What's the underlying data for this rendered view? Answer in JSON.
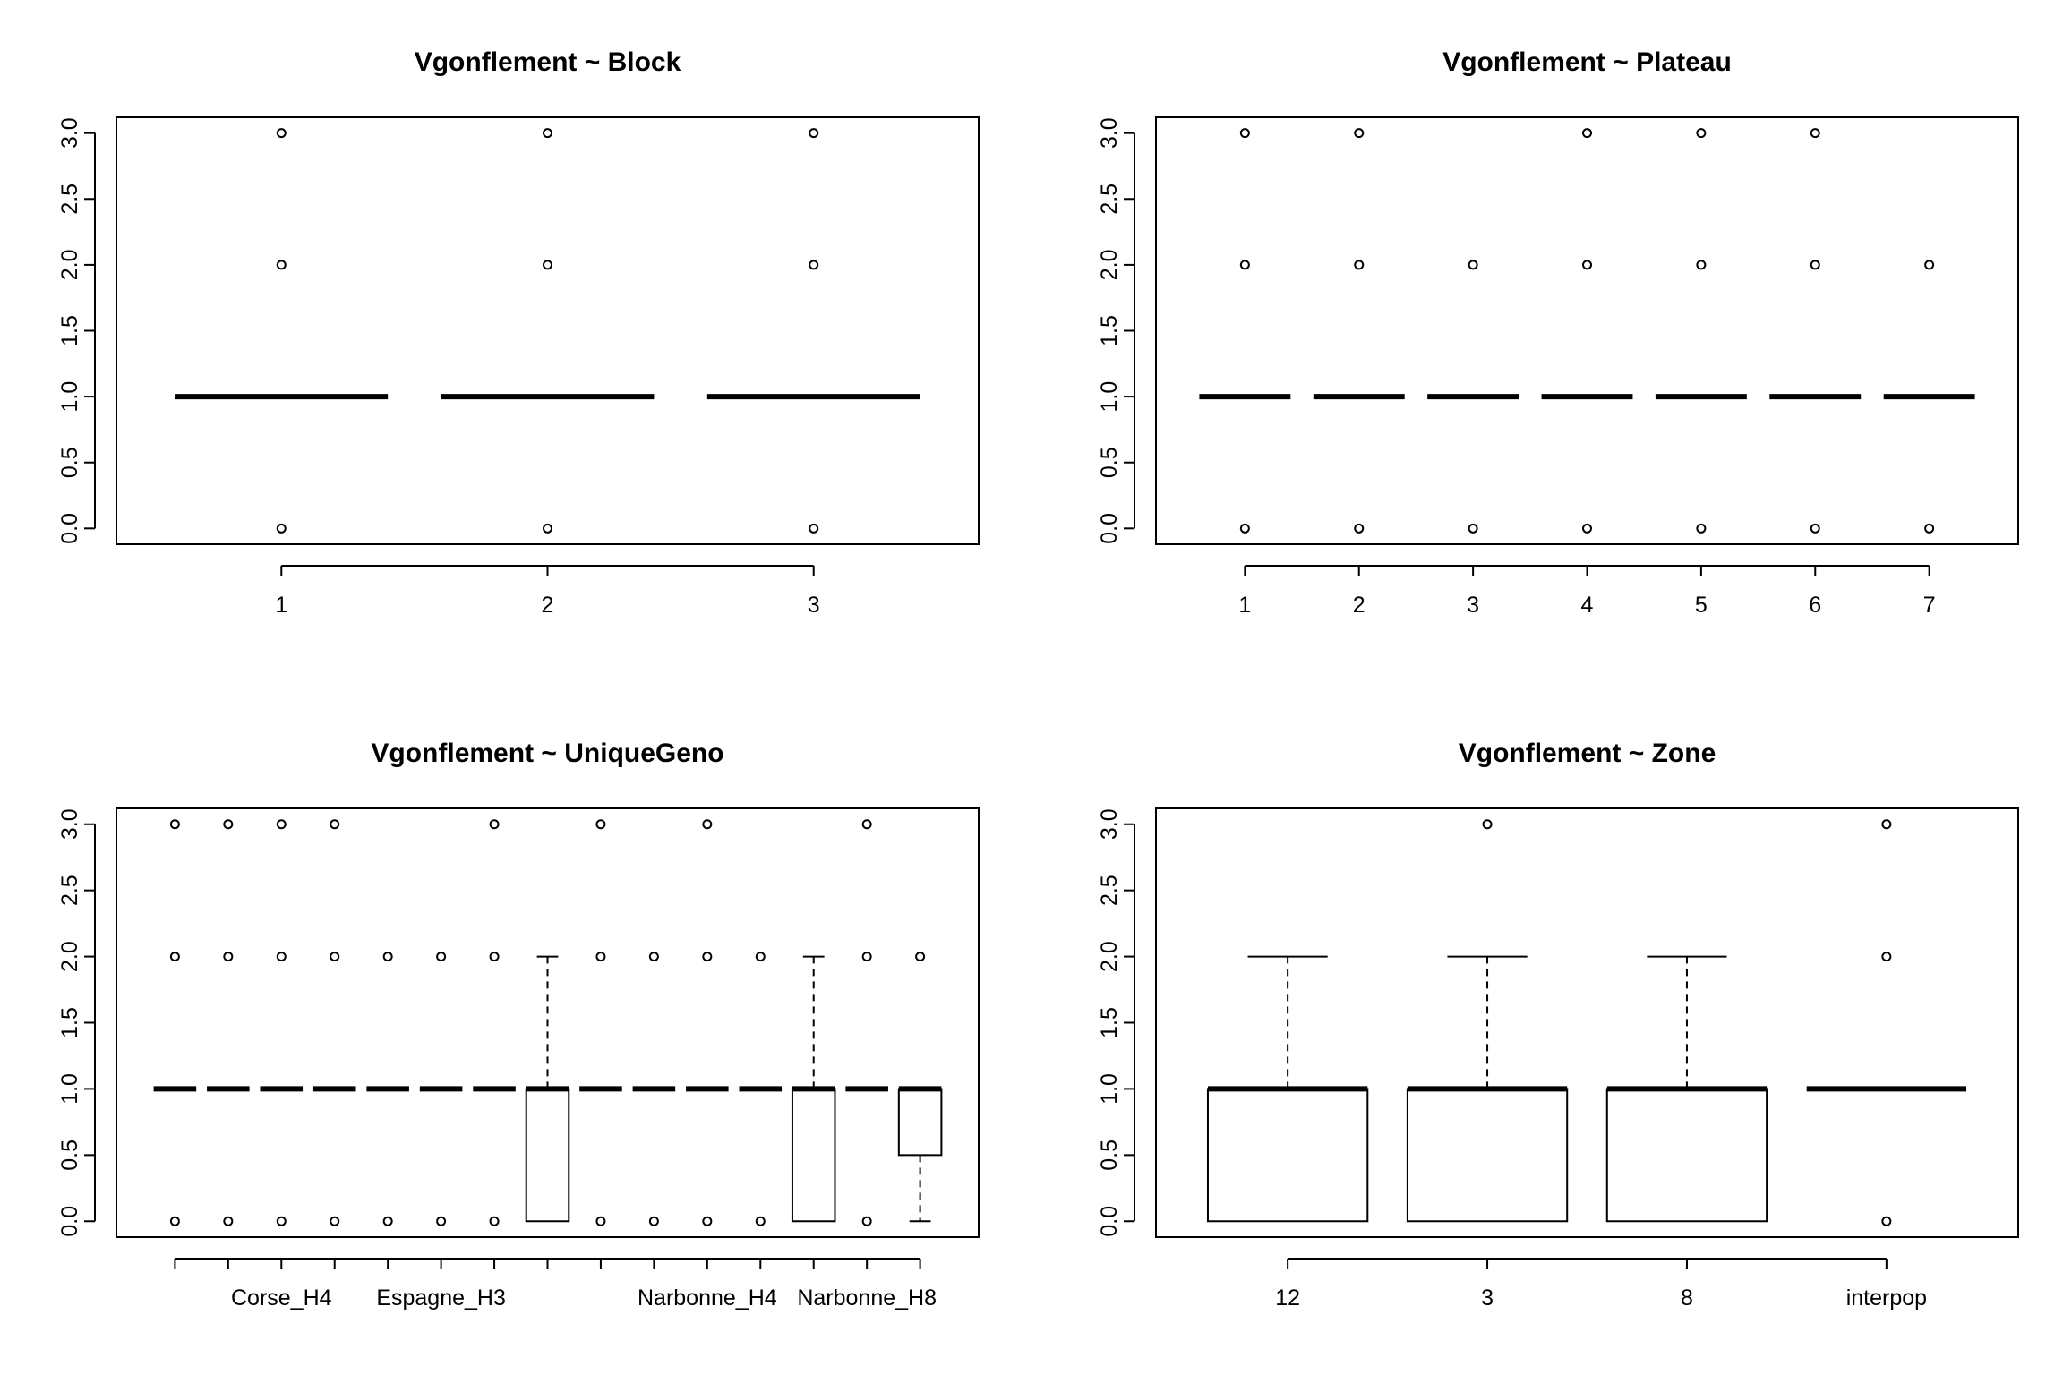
{
  "colors": {
    "background": "#ffffff",
    "ink": "#000000"
  },
  "chart_data": [
    {
      "type": "box",
      "title": "Vgonflement ~ Block",
      "xlabel": "",
      "ylabel": "",
      "ylim": [
        0,
        3
      ],
      "yticks": [
        "0.0",
        "0.5",
        "1.0",
        "1.5",
        "2.0",
        "2.5",
        "3.0"
      ],
      "categories": [
        "1",
        "2",
        "3"
      ],
      "xtick_labels": [
        "1",
        "2",
        "3"
      ],
      "boxes": [
        {
          "q1": 1,
          "median": 1,
          "q3": 1,
          "whisker_low": 1,
          "whisker_high": 1,
          "outliers": [
            0,
            2,
            3
          ]
        },
        {
          "q1": 1,
          "median": 1,
          "q3": 1,
          "whisker_low": 1,
          "whisker_high": 1,
          "outliers": [
            0,
            2,
            3
          ]
        },
        {
          "q1": 1,
          "median": 1,
          "q3": 1,
          "whisker_low": 1,
          "whisker_high": 1,
          "outliers": [
            0,
            2,
            3
          ]
        }
      ]
    },
    {
      "type": "box",
      "title": "Vgonflement ~ Plateau",
      "xlabel": "",
      "ylabel": "",
      "ylim": [
        0,
        3
      ],
      "yticks": [
        "0.0",
        "0.5",
        "1.0",
        "1.5",
        "2.0",
        "2.5",
        "3.0"
      ],
      "categories": [
        "1",
        "2",
        "3",
        "4",
        "5",
        "6",
        "7"
      ],
      "xtick_labels": [
        "1",
        "2",
        "3",
        "4",
        "5",
        "6",
        "7"
      ],
      "boxes": [
        {
          "q1": 1,
          "median": 1,
          "q3": 1,
          "whisker_low": 1,
          "whisker_high": 1,
          "outliers": [
            0,
            2,
            3
          ]
        },
        {
          "q1": 1,
          "median": 1,
          "q3": 1,
          "whisker_low": 1,
          "whisker_high": 1,
          "outliers": [
            0,
            2,
            3
          ]
        },
        {
          "q1": 1,
          "median": 1,
          "q3": 1,
          "whisker_low": 1,
          "whisker_high": 1,
          "outliers": [
            0,
            2
          ]
        },
        {
          "q1": 1,
          "median": 1,
          "q3": 1,
          "whisker_low": 1,
          "whisker_high": 1,
          "outliers": [
            0,
            2,
            3
          ]
        },
        {
          "q1": 1,
          "median": 1,
          "q3": 1,
          "whisker_low": 1,
          "whisker_high": 1,
          "outliers": [
            0,
            2,
            3
          ]
        },
        {
          "q1": 1,
          "median": 1,
          "q3": 1,
          "whisker_low": 1,
          "whisker_high": 1,
          "outliers": [
            0,
            2,
            3
          ]
        },
        {
          "q1": 1,
          "median": 1,
          "q3": 1,
          "whisker_low": 1,
          "whisker_high": 1,
          "outliers": [
            0,
            2
          ]
        }
      ]
    },
    {
      "type": "box",
      "title": "Vgonflement ~ UniqueGeno",
      "xlabel": "",
      "ylabel": "",
      "ylim": [
        0,
        3
      ],
      "yticks": [
        "0.0",
        "0.5",
        "1.0",
        "1.5",
        "2.0",
        "2.5",
        "3.0"
      ],
      "xtick_labels": [
        "",
        "",
        "Corse_H4",
        "",
        "",
        "Espagne_H3",
        "",
        "",
        "",
        "",
        "Narbonne_H4",
        "",
        "",
        "Narbonne_H8",
        ""
      ],
      "boxes": [
        {
          "q1": 1,
          "median": 1,
          "q3": 1,
          "whisker_low": 1,
          "whisker_high": 1,
          "outliers": [
            0,
            2,
            3
          ]
        },
        {
          "q1": 1,
          "median": 1,
          "q3": 1,
          "whisker_low": 1,
          "whisker_high": 1,
          "outliers": [
            0,
            2,
            3
          ]
        },
        {
          "q1": 1,
          "median": 1,
          "q3": 1,
          "whisker_low": 1,
          "whisker_high": 1,
          "outliers": [
            0,
            2,
            3
          ]
        },
        {
          "q1": 1,
          "median": 1,
          "q3": 1,
          "whisker_low": 1,
          "whisker_high": 1,
          "outliers": [
            0,
            2,
            3
          ]
        },
        {
          "q1": 1,
          "median": 1,
          "q3": 1,
          "whisker_low": 1,
          "whisker_high": 1,
          "outliers": [
            0,
            2
          ]
        },
        {
          "q1": 1,
          "median": 1,
          "q3": 1,
          "whisker_low": 1,
          "whisker_high": 1,
          "outliers": [
            0,
            2
          ]
        },
        {
          "q1": 1,
          "median": 1,
          "q3": 1,
          "whisker_low": 1,
          "whisker_high": 1,
          "outliers": [
            0,
            2,
            3
          ]
        },
        {
          "q1": 0,
          "median": 1,
          "q3": 1,
          "whisker_low": 0,
          "whisker_high": 2,
          "outliers": []
        },
        {
          "q1": 1,
          "median": 1,
          "q3": 1,
          "whisker_low": 1,
          "whisker_high": 1,
          "outliers": [
            0,
            2,
            3
          ]
        },
        {
          "q1": 1,
          "median": 1,
          "q3": 1,
          "whisker_low": 1,
          "whisker_high": 1,
          "outliers": [
            0,
            2
          ]
        },
        {
          "q1": 1,
          "median": 1,
          "q3": 1,
          "whisker_low": 1,
          "whisker_high": 1,
          "outliers": [
            0,
            2,
            3
          ]
        },
        {
          "q1": 1,
          "median": 1,
          "q3": 1,
          "whisker_low": 1,
          "whisker_high": 1,
          "outliers": [
            0,
            2
          ]
        },
        {
          "q1": 0,
          "median": 1,
          "q3": 1,
          "whisker_low": 0,
          "whisker_high": 2,
          "outliers": []
        },
        {
          "q1": 1,
          "median": 1,
          "q3": 1,
          "whisker_low": 1,
          "whisker_high": 1,
          "outliers": [
            0,
            2,
            3
          ]
        },
        {
          "q1": 0.5,
          "median": 1,
          "q3": 1,
          "whisker_low": 0,
          "whisker_high": 1,
          "outliers": [
            2
          ]
        }
      ]
    },
    {
      "type": "box",
      "title": "Vgonflement ~ Zone",
      "xlabel": "",
      "ylabel": "",
      "ylim": [
        0,
        3
      ],
      "yticks": [
        "0.0",
        "0.5",
        "1.0",
        "1.5",
        "2.0",
        "2.5",
        "3.0"
      ],
      "categories": [
        "12",
        "3",
        "8",
        "interpop"
      ],
      "xtick_labels": [
        "12",
        "3",
        "8",
        "interpop"
      ],
      "boxes": [
        {
          "q1": 0,
          "median": 1,
          "q3": 1,
          "whisker_low": 0,
          "whisker_high": 2,
          "outliers": []
        },
        {
          "q1": 0,
          "median": 1,
          "q3": 1,
          "whisker_low": 0,
          "whisker_high": 2,
          "outliers": [
            3
          ]
        },
        {
          "q1": 0,
          "median": 1,
          "q3": 1,
          "whisker_low": 0,
          "whisker_high": 2,
          "outliers": []
        },
        {
          "q1": 1,
          "median": 1,
          "q3": 1,
          "whisker_low": 1,
          "whisker_high": 1,
          "outliers": [
            0,
            2,
            3
          ]
        }
      ]
    }
  ]
}
